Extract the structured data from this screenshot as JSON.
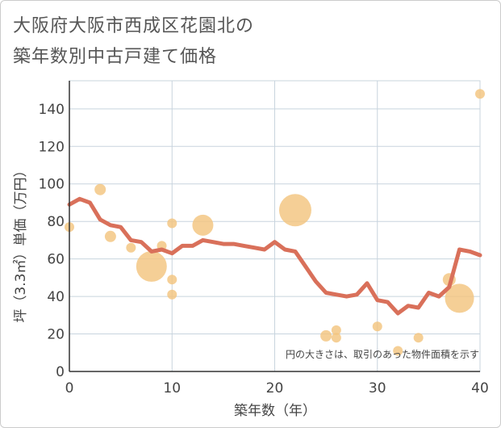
{
  "title_line1": "大阪府大阪市西成区花園北の",
  "title_line2": "築年数別中古戸建て価格",
  "chart_data": {
    "type": "scatter+line",
    "xlabel": "築年数（年）",
    "ylabel": "坪（3.3㎡）単価（万円）",
    "xlim": [
      0,
      40
    ],
    "ylim": [
      0,
      155
    ],
    "xticks": [
      0,
      10,
      20,
      30,
      40
    ],
    "yticks": [
      0,
      20,
      40,
      60,
      80,
      100,
      120,
      140
    ],
    "grid": true,
    "note": "円の大きさは、取引のあった物件面積を示す",
    "colors": {
      "line": "#d9705a",
      "bubble": "#f3c57f",
      "grid": "#c8d4de",
      "axis": "#333333"
    },
    "scatter": [
      {
        "x": 0,
        "y": 77,
        "size": 6
      },
      {
        "x": 3,
        "y": 97,
        "size": 7
      },
      {
        "x": 4,
        "y": 72,
        "size": 7
      },
      {
        "x": 6,
        "y": 66,
        "size": 6
      },
      {
        "x": 8,
        "y": 56,
        "size": 19
      },
      {
        "x": 9,
        "y": 67,
        "size": 6
      },
      {
        "x": 10,
        "y": 79,
        "size": 6
      },
      {
        "x": 10,
        "y": 49,
        "size": 6
      },
      {
        "x": 10,
        "y": 41,
        "size": 6
      },
      {
        "x": 13,
        "y": 78,
        "size": 13
      },
      {
        "x": 22,
        "y": 86,
        "size": 20
      },
      {
        "x": 25,
        "y": 19,
        "size": 7
      },
      {
        "x": 26,
        "y": 22,
        "size": 6
      },
      {
        "x": 26,
        "y": 18,
        "size": 6
      },
      {
        "x": 30,
        "y": 24,
        "size": 6
      },
      {
        "x": 32,
        "y": 11,
        "size": 6
      },
      {
        "x": 34,
        "y": 18,
        "size": 6
      },
      {
        "x": 37,
        "y": 49,
        "size": 8
      },
      {
        "x": 38,
        "y": 39,
        "size": 18
      },
      {
        "x": 40,
        "y": 148,
        "size": 6
      }
    ],
    "line": {
      "x": [
        0,
        1,
        2,
        3,
        4,
        5,
        6,
        7,
        8,
        9,
        10,
        11,
        12,
        13,
        14,
        15,
        16,
        17,
        18,
        19,
        20,
        21,
        22,
        23,
        24,
        25,
        26,
        27,
        28,
        29,
        30,
        31,
        32,
        33,
        34,
        35,
        36,
        37,
        38,
        39,
        40
      ],
      "y": [
        89,
        92,
        90,
        81,
        78,
        77,
        70,
        69,
        64,
        65,
        63,
        67,
        67,
        70,
        69,
        68,
        68,
        67,
        66,
        65,
        69,
        65,
        64,
        56,
        48,
        42,
        41,
        40,
        41,
        47,
        38,
        37,
        31,
        35,
        34,
        42,
        40,
        45,
        65,
        64,
        62
      ]
    }
  }
}
